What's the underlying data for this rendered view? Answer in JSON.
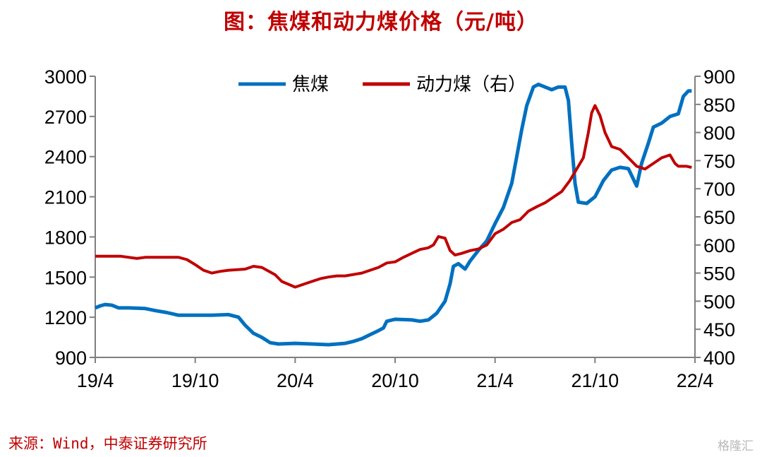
{
  "title": "图：焦煤和动力煤价格（元/吨）",
  "source": "来源：Wind，中泰证券研究所",
  "watermark": "格隆汇",
  "chart_data": {
    "type": "line",
    "x_ticks": [
      "19/4",
      "19/10",
      "20/4",
      "20/10",
      "21/4",
      "21/10",
      "22/4"
    ],
    "y_left": {
      "ticks": [
        900,
        1200,
        1500,
        1800,
        2100,
        2400,
        2700,
        3000
      ],
      "range": [
        900,
        3000
      ]
    },
    "y_right": {
      "ticks": [
        400,
        450,
        500,
        550,
        600,
        650,
        700,
        750,
        800,
        850,
        900
      ],
      "range": [
        400,
        900
      ]
    },
    "grid": false,
    "legend_position": "top-center",
    "series": [
      {
        "name": "焦煤",
        "color": "#0070c0",
        "axis": "left",
        "points": [
          [
            0,
            1270
          ],
          [
            0.3,
            1285
          ],
          [
            0.6,
            1295
          ],
          [
            1.0,
            1290
          ],
          [
            1.4,
            1270
          ],
          [
            2.0,
            1270
          ],
          [
            3.0,
            1265
          ],
          [
            3.6,
            1250
          ],
          [
            4.3,
            1235
          ],
          [
            5.0,
            1215
          ],
          [
            6.0,
            1215
          ],
          [
            7.0,
            1215
          ],
          [
            8.0,
            1220
          ],
          [
            8.6,
            1200
          ],
          [
            9.0,
            1140
          ],
          [
            9.5,
            1080
          ],
          [
            10.0,
            1050
          ],
          [
            10.5,
            1010
          ],
          [
            11.0,
            1000
          ],
          [
            12.0,
            1005
          ],
          [
            13.0,
            1000
          ],
          [
            14.0,
            995
          ],
          [
            15.0,
            1005
          ],
          [
            15.5,
            1020
          ],
          [
            16.0,
            1040
          ],
          [
            16.5,
            1070
          ],
          [
            17.0,
            1100
          ],
          [
            17.3,
            1120
          ],
          [
            17.5,
            1170
          ],
          [
            18.0,
            1185
          ],
          [
            19.0,
            1180
          ],
          [
            19.5,
            1170
          ],
          [
            20.0,
            1180
          ],
          [
            20.5,
            1230
          ],
          [
            21.0,
            1320
          ],
          [
            21.3,
            1450
          ],
          [
            21.5,
            1580
          ],
          [
            21.8,
            1600
          ],
          [
            22.2,
            1560
          ],
          [
            22.5,
            1620
          ],
          [
            23.0,
            1700
          ],
          [
            23.5,
            1770
          ],
          [
            24.0,
            1900
          ],
          [
            24.5,
            2020
          ],
          [
            25.0,
            2200
          ],
          [
            25.3,
            2400
          ],
          [
            25.6,
            2600
          ],
          [
            25.9,
            2780
          ],
          [
            26.3,
            2920
          ],
          [
            26.6,
            2940
          ],
          [
            27.0,
            2920
          ],
          [
            27.4,
            2900
          ],
          [
            27.8,
            2920
          ],
          [
            28.2,
            2920
          ],
          [
            28.4,
            2820
          ],
          [
            28.6,
            2500
          ],
          [
            28.8,
            2200
          ],
          [
            29.0,
            2060
          ],
          [
            29.5,
            2050
          ],
          [
            30.0,
            2100
          ],
          [
            30.5,
            2220
          ],
          [
            31.0,
            2300
          ],
          [
            31.5,
            2320
          ],
          [
            32.0,
            2310
          ],
          [
            32.5,
            2180
          ],
          [
            32.8,
            2350
          ],
          [
            33.2,
            2500
          ],
          [
            33.5,
            2620
          ],
          [
            34.0,
            2650
          ],
          [
            34.5,
            2700
          ],
          [
            35.0,
            2720
          ],
          [
            35.3,
            2850
          ],
          [
            35.6,
            2890
          ],
          [
            35.8,
            2890
          ]
        ]
      },
      {
        "name": "动力煤（右）",
        "color": "#c00000",
        "axis": "right",
        "points": [
          [
            0,
            580
          ],
          [
            1.5,
            580
          ],
          [
            2.5,
            576
          ],
          [
            3.0,
            578
          ],
          [
            4.0,
            578
          ],
          [
            5.0,
            578
          ],
          [
            5.5,
            574
          ],
          [
            6.0,
            565
          ],
          [
            6.5,
            555
          ],
          [
            7.0,
            550
          ],
          [
            7.5,
            553
          ],
          [
            8.0,
            555
          ],
          [
            9.0,
            557
          ],
          [
            9.5,
            562
          ],
          [
            10.0,
            560
          ],
          [
            10.8,
            547
          ],
          [
            11.2,
            535
          ],
          [
            11.6,
            530
          ],
          [
            12.0,
            525
          ],
          [
            12.5,
            530
          ],
          [
            13.0,
            535
          ],
          [
            13.5,
            540
          ],
          [
            14.0,
            543
          ],
          [
            14.5,
            545
          ],
          [
            15.0,
            545
          ],
          [
            16.0,
            550
          ],
          [
            16.5,
            555
          ],
          [
            17.0,
            560
          ],
          [
            17.5,
            568
          ],
          [
            18.0,
            570
          ],
          [
            18.5,
            578
          ],
          [
            19.0,
            585
          ],
          [
            19.5,
            592
          ],
          [
            20.0,
            595
          ],
          [
            20.3,
            600
          ],
          [
            20.6,
            615
          ],
          [
            21.0,
            612
          ],
          [
            21.3,
            590
          ],
          [
            21.6,
            582
          ],
          [
            22.0,
            585
          ],
          [
            22.5,
            590
          ],
          [
            23.0,
            593
          ],
          [
            23.5,
            600
          ],
          [
            24.0,
            620
          ],
          [
            24.5,
            628
          ],
          [
            25.0,
            640
          ],
          [
            25.5,
            645
          ],
          [
            26.0,
            660
          ],
          [
            26.5,
            668
          ],
          [
            27.0,
            675
          ],
          [
            27.5,
            685
          ],
          [
            28.0,
            695
          ],
          [
            28.5,
            715
          ],
          [
            29.0,
            740
          ],
          [
            29.3,
            755
          ],
          [
            29.6,
            800
          ],
          [
            29.8,
            835
          ],
          [
            30.0,
            848
          ],
          [
            30.3,
            830
          ],
          [
            30.6,
            800
          ],
          [
            31.0,
            775
          ],
          [
            31.5,
            770
          ],
          [
            32.0,
            755
          ],
          [
            32.5,
            740
          ],
          [
            33.0,
            735
          ],
          [
            33.5,
            745
          ],
          [
            34.0,
            755
          ],
          [
            34.5,
            760
          ],
          [
            34.8,
            745
          ],
          [
            35.0,
            740
          ],
          [
            35.5,
            740
          ],
          [
            35.8,
            738
          ]
        ]
      }
    ]
  }
}
